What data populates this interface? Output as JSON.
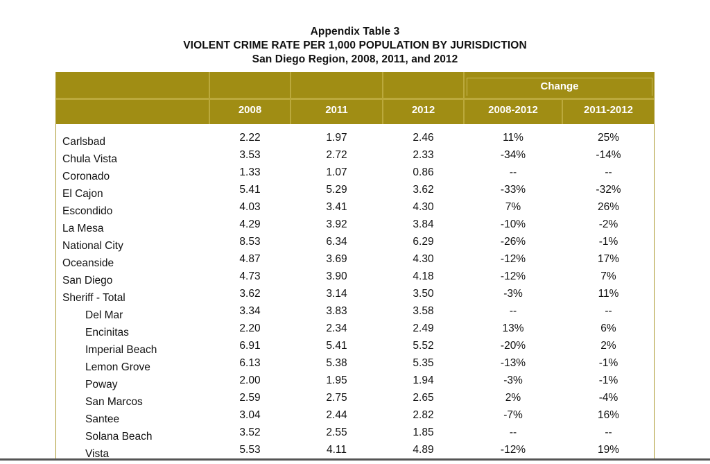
{
  "header": {
    "line1": "Appendix Table 3",
    "line2": "VIOLENT CRIME RATE PER 1,000 POPULATION BY JURISDICTION",
    "line3": "San Diego Region, 2008, 2011, and 2012"
  },
  "table": {
    "group_header": "Change",
    "columns": [
      "2008",
      "2011",
      "2012",
      "2008-2012",
      "2011-2012"
    ],
    "rows": [
      {
        "name": "Carlsbad",
        "v2008": "2.22",
        "v2011": "1.97",
        "v2012": "2.46",
        "c0812": "11%",
        "c1112": "25%",
        "indent": false
      },
      {
        "name": "Chula Vista",
        "v2008": "3.53",
        "v2011": "2.72",
        "v2012": "2.33",
        "c0812": "-34%",
        "c1112": "-14%",
        "indent": false
      },
      {
        "name": "Coronado",
        "v2008": "1.33",
        "v2011": "1.07",
        "v2012": "0.86",
        "c0812": "--",
        "c1112": "--",
        "indent": false
      },
      {
        "name": "El Cajon",
        "v2008": "5.41",
        "v2011": "5.29",
        "v2012": "3.62",
        "c0812": "-33%",
        "c1112": "-32%",
        "indent": false
      },
      {
        "name": "Escondido",
        "v2008": "4.03",
        "v2011": "3.41",
        "v2012": "4.30",
        "c0812": "7%",
        "c1112": "26%",
        "indent": false
      },
      {
        "name": "La Mesa",
        "v2008": "4.29",
        "v2011": "3.92",
        "v2012": "3.84",
        "c0812": "-10%",
        "c1112": "-2%",
        "indent": false
      },
      {
        "name": "National City",
        "v2008": "8.53",
        "v2011": "6.34",
        "v2012": "6.29",
        "c0812": "-26%",
        "c1112": "-1%",
        "indent": false
      },
      {
        "name": "Oceanside",
        "v2008": "4.87",
        "v2011": "3.69",
        "v2012": "4.30",
        "c0812": "-12%",
        "c1112": "17%",
        "indent": false
      },
      {
        "name": "San Diego",
        "v2008": "4.73",
        "v2011": "3.90",
        "v2012": "4.18",
        "c0812": "-12%",
        "c1112": "7%",
        "indent": false
      },
      {
        "name": "Sheriff - Total",
        "v2008": "3.62",
        "v2011": "3.14",
        "v2012": "3.50",
        "c0812": "-3%",
        "c1112": "11%",
        "indent": false
      },
      {
        "name": "Del Mar",
        "v2008": "3.34",
        "v2011": "3.83",
        "v2012": "3.58",
        "c0812": "--",
        "c1112": "--",
        "indent": true
      },
      {
        "name": "Encinitas",
        "v2008": "2.20",
        "v2011": "2.34",
        "v2012": "2.49",
        "c0812": "13%",
        "c1112": "6%",
        "indent": true
      },
      {
        "name": "Imperial Beach",
        "v2008": "6.91",
        "v2011": "5.41",
        "v2012": "5.52",
        "c0812": "-20%",
        "c1112": "2%",
        "indent": true
      },
      {
        "name": "Lemon Grove",
        "v2008": "6.13",
        "v2011": "5.38",
        "v2012": "5.35",
        "c0812": "-13%",
        "c1112": "-1%",
        "indent": true
      },
      {
        "name": "Poway",
        "v2008": "2.00",
        "v2011": "1.95",
        "v2012": "1.94",
        "c0812": "-3%",
        "c1112": "-1%",
        "indent": true
      },
      {
        "name": "San Marcos",
        "v2008": "2.59",
        "v2011": "2.75",
        "v2012": "2.65",
        "c0812": "2%",
        "c1112": "-4%",
        "indent": true
      },
      {
        "name": "Santee",
        "v2008": "3.04",
        "v2011": "2.44",
        "v2012": "2.82",
        "c0812": "-7%",
        "c1112": "16%",
        "indent": true
      },
      {
        "name": "Solana Beach",
        "v2008": "3.52",
        "v2011": "2.55",
        "v2012": "1.85",
        "c0812": "--",
        "c1112": "--",
        "indent": true
      },
      {
        "name": "Vista",
        "v2008": "5.53",
        "v2011": "4.11",
        "v2012": "4.89",
        "c0812": "-12%",
        "c1112": "19%",
        "indent": true
      }
    ]
  },
  "colors": {
    "header_bg": "#a08d14",
    "header_lines": "#bba93c",
    "header_text": "#ffffff"
  }
}
